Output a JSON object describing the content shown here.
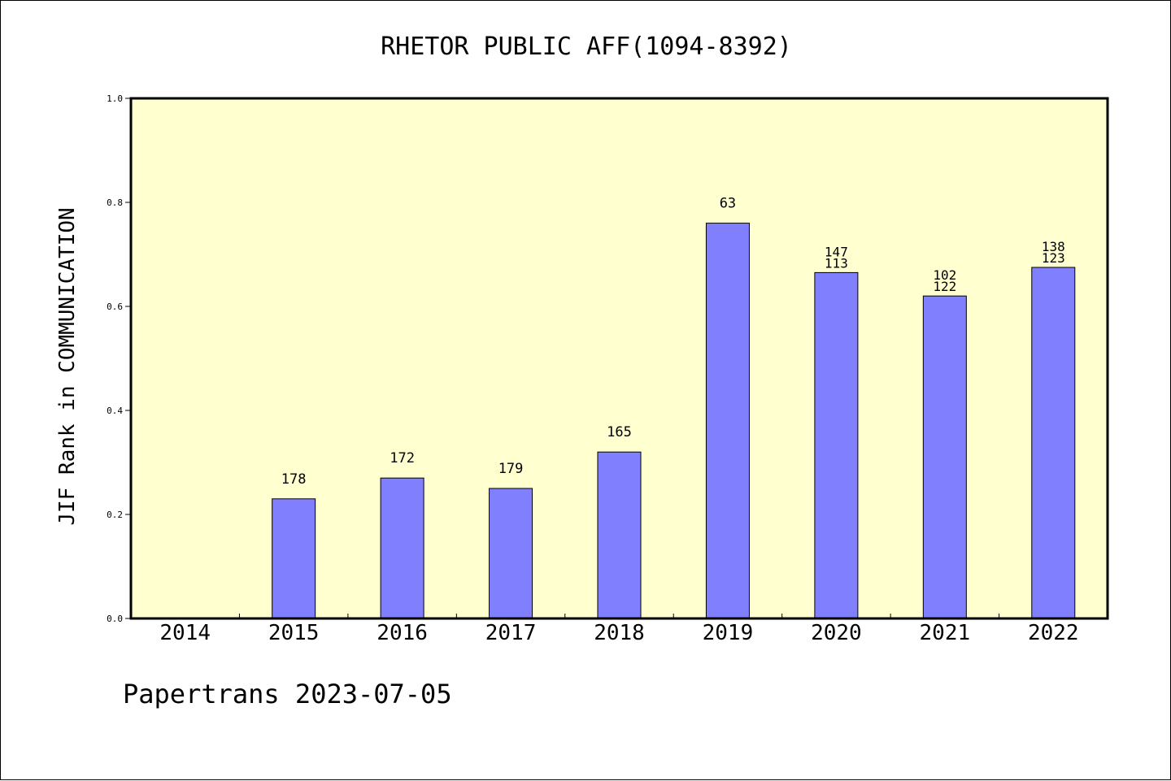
{
  "chart_data": {
    "type": "bar",
    "title": "RHETOR PUBLIC AFF(1094-8392)",
    "ylabel": "JIF Rank in COMMUNICATION",
    "xlabel": "",
    "ylim": [
      0,
      1.0
    ],
    "yticks": [
      "0.0",
      "0.2",
      "0.4",
      "0.6",
      "0.8",
      "1.0"
    ],
    "ytick_values": [
      0,
      0.2,
      0.4,
      0.6,
      0.8,
      1.0
    ],
    "categories": [
      "2014",
      "2015",
      "2016",
      "2017",
      "2018",
      "2019",
      "2020",
      "2021",
      "2022"
    ],
    "values": [
      null,
      0.23,
      0.27,
      0.25,
      0.32,
      0.76,
      0.665,
      0.62,
      0.675
    ],
    "bar_labels": [
      [],
      [
        "178"
      ],
      [
        "172"
      ],
      [
        "179"
      ],
      [
        "165"
      ],
      [
        "63"
      ],
      [
        "147",
        "113"
      ],
      [
        "102",
        "122"
      ],
      [
        "138",
        "123"
      ]
    ],
    "grid": false,
    "plot_background": "#ffffd0",
    "bar_color": "#8080ff"
  },
  "footer": {
    "text": "Papertrans 2023-07-05"
  }
}
